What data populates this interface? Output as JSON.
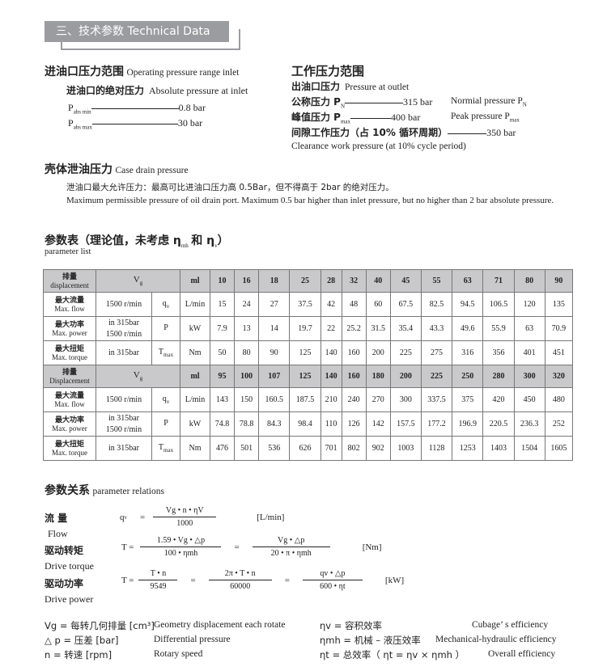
{
  "section_title": "三、技术参数  Technical Data",
  "inlet": {
    "title_zh": "进油口压力范围",
    "title_en": "Operating pressure range inlet",
    "sub_zh": "进油口的绝对压力",
    "sub_en": "Absolute pressure at inlet",
    "pmin_label": "P",
    "pmin_sub": "abs min",
    "pmin_value": "0.8 bar",
    "pmax_label": "P",
    "pmax_sub": "abs max",
    "pmax_value": "30 bar"
  },
  "working": {
    "title_zh": "工作压力范围",
    "outlet_zh": "出油口压力",
    "outlet_en": "Pressure at outlet",
    "nominal_zh": "公称压力 P",
    "nominal_sub": "N",
    "nominal_value": "315 bar",
    "nominal_en": "Normial  pressure P",
    "nominal_en_sub": "N",
    "peak_zh": "峰值压力 P",
    "peak_sub": "max",
    "peak_value": "400 bar",
    "peak_en": "Peak pressure P",
    "peak_en_sub": "max",
    "gap_zh": "间隙工作压力（占 10% 循环周期）",
    "gap_value": "350 bar",
    "gap_en": "Clearance work pressure (at 10% cycle period)"
  },
  "drain": {
    "title_zh": "壳体泄油压力",
    "title_en": "Case drain pressure",
    "text_zh": "泄油口最大允许压力：最高可比进油口压力高 0.5Bar，但不得高于 2bar 的绝对压力。",
    "text_en": "Maximum permissible pressure of oil drain port. Maximum 0.5 bar higher than inlet pressure, but no higher than 2 bar absolute pressure."
  },
  "params": {
    "title_zh": "参数表（理论值，未考虑 η",
    "title_mh": "mh",
    "title_and": "和 η",
    "title_v": "v",
    "title_end": "）",
    "title_en": "parameter list"
  },
  "table": {
    "blocks": [
      {
        "disp_zh": "排量",
        "disp_en": "displacement",
        "vg": "V",
        "vg_sub": "g",
        "unit": "ml",
        "values": [
          "10",
          "16",
          "18",
          "25",
          "28",
          "32",
          "40",
          "45",
          "55",
          "63",
          "71",
          "80",
          "90"
        ],
        "rows": [
          {
            "zh": "最大流量",
            "en": "Max. flow",
            "cond": [
              "1500 r/min"
            ],
            "sym": "q",
            "sym_sub": "v",
            "unit": "L/min",
            "values": [
              "15",
              "24",
              "27",
              "37.5",
              "42",
              "48",
              "60",
              "67.5",
              "82.5",
              "94.5",
              "106.5",
              "120",
              "135"
            ]
          },
          {
            "zh": "最大功率",
            "en": "Max. power",
            "cond": [
              "in 315bar",
              "1500 r/min"
            ],
            "sym": "P",
            "sym_sub": "",
            "unit": "kW",
            "values": [
              "7.9",
              "13",
              "14",
              "19.7",
              "22",
              "25.2",
              "31.5",
              "35.4",
              "43.3",
              "49.6",
              "55.9",
              "63",
              "70.9"
            ]
          },
          {
            "zh": "最大扭矩",
            "en": "Max. torque",
            "cond": [
              "in 315bar"
            ],
            "sym": "T",
            "sym_sub": "max",
            "unit": "Nm",
            "values": [
              "50",
              "80",
              "90",
              "125",
              "140",
              "160",
              "200",
              "225",
              "275",
              "316",
              "356",
              "401",
              "451"
            ]
          }
        ]
      },
      {
        "disp_zh": "排量",
        "disp_en": "Displacement",
        "vg": "V",
        "vg_sub": "g",
        "unit": "ml",
        "values": [
          "95",
          "100",
          "107",
          "125",
          "140",
          "160",
          "180",
          "200",
          "225",
          "250",
          "280",
          "300",
          "320"
        ],
        "rows": [
          {
            "zh": "最大流量",
            "en": "Max. flow",
            "cond": [
              "1500 r/min"
            ],
            "sym": "q",
            "sym_sub": "v",
            "unit": "L/min",
            "values": [
              "143",
              "150",
              "160.5",
              "187.5",
              "210",
              "240",
              "270",
              "300",
              "337.5",
              "375",
              "420",
              "450",
              "480"
            ]
          },
          {
            "zh": "最大功率",
            "en": "Max. power",
            "cond": [
              "in 315bar",
              "1500 r/min"
            ],
            "sym": "P",
            "sym_sub": "",
            "unit": "kW",
            "values": [
              "74.8",
              "78.8",
              "84.3",
              "98.4",
              "110",
              "126",
              "142",
              "157.5",
              "177.2",
              "196.9",
              "220.5",
              "236.3",
              "252"
            ]
          },
          {
            "zh": "最大扭矩",
            "en": "Max. torque",
            "cond": [
              "in 315bar"
            ],
            "sym": "T",
            "sym_sub": "max",
            "unit": "Nm",
            "values": [
              "476",
              "501",
              "536",
              "626",
              "701",
              "802",
              "902",
              "1003",
              "1128",
              "1253",
              "1403",
              "1504",
              "1605"
            ]
          }
        ]
      }
    ]
  },
  "relations": {
    "title_zh": "参数关系",
    "title_en": "parameter relations",
    "flow": {
      "zh": "流 量",
      "en": "Flow",
      "lhs": "q",
      "lhs_sub": "v",
      "eq": "=",
      "num": "Vg • n • ηV",
      "den": "1000",
      "unit": "[L/min]"
    },
    "torque": {
      "zh": "驱动转矩",
      "en": "Drive torque",
      "lhs": "T =",
      "num1": "1.59 • Vg • △p",
      "den1": "100 • ηmh",
      "eq": "=",
      "num2": "Vg • △p",
      "den2": "20 • π • ηmh",
      "unit": "[Nm]"
    },
    "power": {
      "zh": "驱动功率",
      "en": "Drive power",
      "lhs": "T =",
      "num1": "T • n",
      "den1": "9549",
      "eq": "=",
      "num2": "2π • T • n",
      "den2": "60000",
      "num3": "qv • △p",
      "den3": "600 • ηt",
      "unit": "[kW]"
    }
  },
  "legend": [
    {
      "sym": "Vg = 每转几何排量 [cm³]",
      "en": "Geometry displacement each rotate"
    },
    {
      "sym": "△ p = 压差 [bar]",
      "en": "Differential pressure"
    },
    {
      "sym": "n = 转速 [rpm]",
      "en": "Rotary speed"
    },
    {
      "sym": "ηv = 容积效率",
      "en": "Cubage’ s efficiency"
    },
    {
      "sym": "ηmh = 机械 – 液压效率",
      "en": "Mechanical-hydraulic efficiency"
    },
    {
      "sym": "ηt = 总效率（ ηt = ηv × ηmh ）",
      "en": "Overall efficiency"
    }
  ],
  "colors": {
    "banner": "#9b9ca0",
    "table_header": "#c9c9cb"
  }
}
